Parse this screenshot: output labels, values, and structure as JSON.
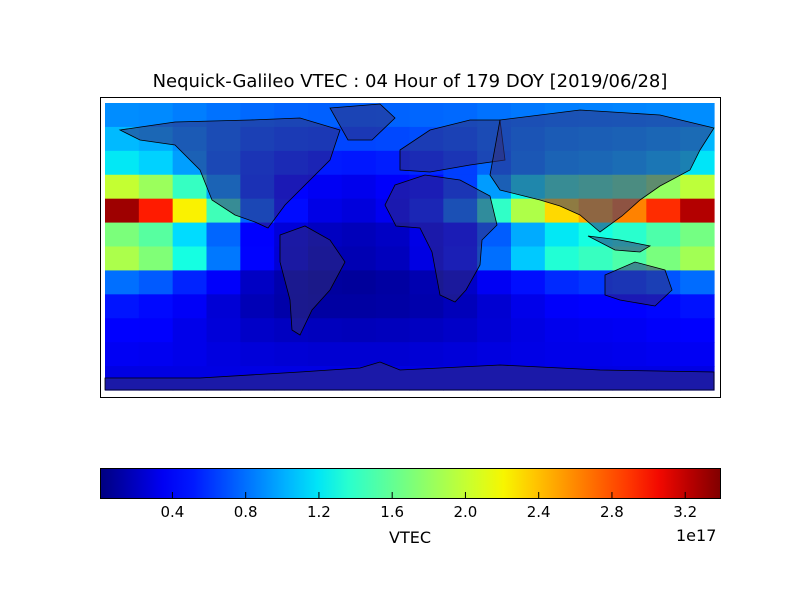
{
  "title": "Nequick-Galileo VTEC : 04 Hour of 179 DOY [2019/06/28]",
  "chart_data": {
    "type": "heatmap",
    "projection": "cylindrical world map with coastlines and country borders",
    "title": "Nequick-Galileo VTEC : 04 Hour of 179 DOY [2019/06/28]",
    "colormap": "jet",
    "lon_centers": [
      -170,
      -150,
      -130,
      -110,
      -90,
      -70,
      -50,
      -30,
      -10,
      10,
      30,
      50,
      70,
      90,
      110,
      130,
      150,
      170
    ],
    "lat_centers": [
      82.5,
      67.5,
      52.5,
      37.5,
      22.5,
      7.5,
      -7.5,
      -22.5,
      -37.5,
      -52.5,
      -67.5,
      -82.5
    ],
    "values_unit_multiplier": "1e17",
    "values": [
      [
        0.9,
        0.89,
        0.85,
        0.81,
        0.78,
        0.76,
        0.75,
        0.75,
        0.76,
        0.77,
        0.78,
        0.81,
        0.83,
        0.85,
        0.86,
        0.87,
        0.88,
        0.9
      ],
      [
        1.05,
        1.01,
        0.91,
        0.81,
        0.72,
        0.68,
        0.66,
        0.66,
        0.67,
        0.69,
        0.73,
        0.8,
        0.87,
        0.92,
        0.94,
        0.96,
        1.0,
        1.04
      ],
      [
        1.2,
        1.13,
        0.96,
        0.78,
        0.63,
        0.56,
        0.52,
        0.51,
        0.53,
        0.57,
        0.64,
        0.77,
        0.89,
        0.98,
        1.01,
        1.05,
        1.12,
        1.19
      ],
      [
        2.0,
        1.83,
        1.41,
        0.98,
        0.61,
        0.44,
        0.35,
        0.33,
        0.37,
        0.47,
        0.64,
        0.95,
        1.24,
        1.46,
        1.54,
        1.63,
        1.8,
        1.97
      ],
      [
        3.3,
        2.99,
        2.22,
        1.45,
        0.77,
        0.47,
        0.31,
        0.28,
        0.34,
        0.53,
        0.84,
        1.39,
        1.91,
        2.31,
        2.47,
        2.62,
        2.93,
        3.24
      ],
      [
        1.7,
        1.55,
        1.16,
        0.77,
        0.43,
        0.27,
        0.2,
        0.18,
        0.21,
        0.31,
        0.46,
        0.74,
        1.0,
        1.2,
        1.28,
        1.36,
        1.51,
        1.67
      ],
      [
        1.9,
        1.72,
        1.28,
        0.83,
        0.44,
        0.26,
        0.17,
        0.16,
        0.19,
        0.3,
        0.48,
        0.8,
        1.1,
        1.33,
        1.42,
        1.51,
        1.69,
        1.86
      ],
      [
        0.8,
        0.73,
        0.55,
        0.37,
        0.21,
        0.14,
        0.1,
        0.09,
        0.11,
        0.15,
        0.22,
        0.35,
        0.48,
        0.57,
        0.61,
        0.64,
        0.71,
        0.79
      ],
      [
        0.5,
        0.46,
        0.36,
        0.26,
        0.17,
        0.13,
        0.11,
        0.11,
        0.12,
        0.14,
        0.18,
        0.25,
        0.32,
        0.37,
        0.39,
        0.41,
        0.45,
        0.49
      ],
      [
        0.4,
        0.38,
        0.32,
        0.27,
        0.22,
        0.2,
        0.19,
        0.18,
        0.19,
        0.2,
        0.22,
        0.26,
        0.3,
        0.33,
        0.34,
        0.35,
        0.37,
        0.4
      ],
      [
        0.35,
        0.34,
        0.32,
        0.29,
        0.27,
        0.26,
        0.25,
        0.25,
        0.25,
        0.26,
        0.27,
        0.29,
        0.31,
        0.32,
        0.32,
        0.33,
        0.34,
        0.35
      ],
      [
        0.3,
        0.3,
        0.3,
        0.3,
        0.3,
        0.3,
        0.3,
        0.3,
        0.3,
        0.3,
        0.3,
        0.3,
        0.3,
        0.3,
        0.3,
        0.3,
        0.3,
        0.3
      ]
    ],
    "colorbar": {
      "label": "VTEC",
      "exponent_label": "1e17",
      "range": [
        0.01,
        3.39
      ],
      "ticks": [
        0.4,
        0.8,
        1.2,
        1.6,
        2.0,
        2.4,
        2.8,
        3.2
      ],
      "tick_labels": [
        "0.4",
        "0.8",
        "1.2",
        "1.6",
        "2.0",
        "2.4",
        "2.8",
        "3.2"
      ],
      "orientation": "horizontal"
    },
    "land_overlay_color": "#2a2a80"
  }
}
